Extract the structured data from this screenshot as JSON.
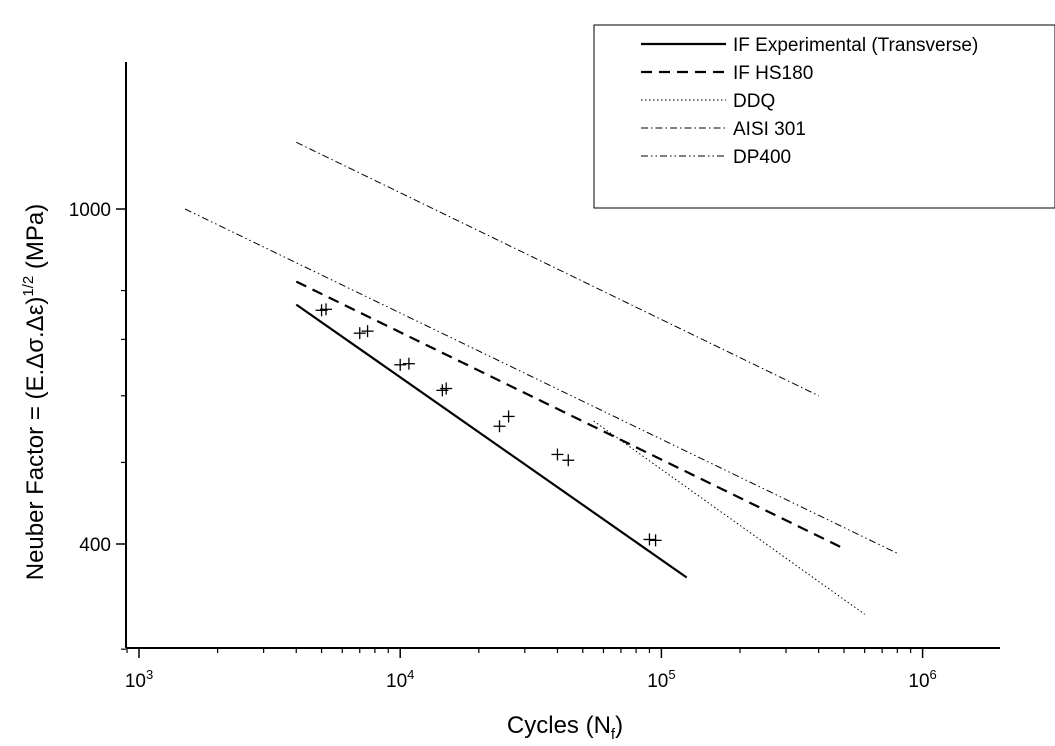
{
  "chart_data": {
    "type": "line",
    "xlabel": {
      "main": "Cycles (N",
      "sub": "f",
      "end": ")"
    },
    "ylabel": {
      "main": "Neuber Factor = (E.Δσ.Δε)",
      "sup": "1/2",
      "end": " (MPa)"
    },
    "x_scale": "log",
    "y_scale": "log",
    "xlim": [
      800,
      2000000
    ],
    "ylim": [
      270,
      1450
    ],
    "x_ticks": [
      {
        "value": 1000,
        "base": "10",
        "exp": "3"
      },
      {
        "value": 10000,
        "base": "10",
        "exp": "4"
      },
      {
        "value": 100000,
        "base": "10",
        "exp": "5"
      },
      {
        "value": 1000000,
        "base": "10",
        "exp": "6"
      }
    ],
    "y_ticks_labeled": [
      {
        "value": 400,
        "label": "400"
      },
      {
        "value": 1000,
        "label": "1000"
      }
    ],
    "y_ticks_minor": [
      300,
      500,
      600,
      700,
      800
    ],
    "legend_position": "top-right",
    "series": [
      {
        "name": "IF Experimental (Transverse)",
        "style": "solid",
        "color": "#000000",
        "x": [
          4000,
          125000
        ],
        "y": [
          770,
          365
        ]
      },
      {
        "name": "IF HS180",
        "style": "dashed",
        "color": "#000000",
        "x": [
          4000,
          500000
        ],
        "y": [
          820,
          395
        ]
      },
      {
        "name": "DDQ",
        "style": "dotted",
        "color": "#000000",
        "x": [
          55000,
          600000
        ],
        "y": [
          560,
          330
        ]
      },
      {
        "name": "AISI 301",
        "style": "dashdot",
        "color": "#000000",
        "x": [
          4000,
          400000
        ],
        "y": [
          1200,
          600
        ]
      },
      {
        "name": "DP400",
        "style": "dashdotdot",
        "color": "#000000",
        "x": [
          1500,
          800000
        ],
        "y": [
          1000,
          390
        ]
      }
    ],
    "markers": {
      "shape": "plus",
      "x": [
        5000,
        5200,
        7000,
        7500,
        10000,
        10800,
        14500,
        15000,
        24000,
        26000,
        40000,
        44000,
        90000,
        95000
      ],
      "y": [
        758,
        760,
        712,
        716,
        653,
        655,
        609,
        612,
        552,
        567,
        511,
        503,
        405,
        404
      ]
    }
  }
}
